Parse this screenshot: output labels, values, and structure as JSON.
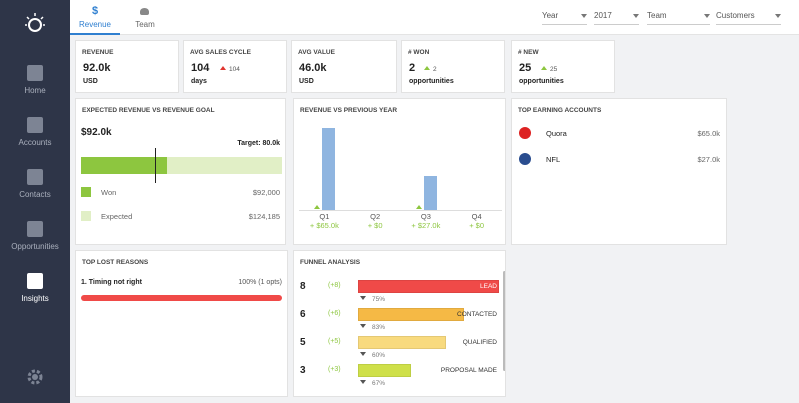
{
  "sidebar": {
    "nav": [
      "Home",
      "Accounts",
      "Contacts",
      "Opportunities",
      "Insights"
    ]
  },
  "tabs": [
    "Revenue",
    "Team"
  ],
  "filters": [
    "Year",
    "2017",
    "Team",
    "Customers"
  ],
  "kpis": [
    {
      "title": "REVENUE",
      "value": "92.0k",
      "sub": "USD"
    },
    {
      "title": "AVG SALES CYCLE",
      "value": "104",
      "change": "104",
      "sub": "days"
    },
    {
      "title": "AVG VALUE",
      "value": "46.0k",
      "sub": "USD"
    },
    {
      "title": "# WON",
      "value": "2",
      "change": "2",
      "sub": "opportunities"
    },
    {
      "title": "# NEW",
      "value": "25",
      "change": "25",
      "sub": "opportunities"
    }
  ],
  "expected_revenue": {
    "title": "EXPECTED REVENUE VS REVENUE GOAL",
    "total": "$92.0k",
    "target": {
      "value": 80000,
      "label": "Target: 80.0k"
    },
    "segments": [
      {
        "name": "Won",
        "value": 92000,
        "value_label": "$92,000",
        "color": "#8dc63f"
      },
      {
        "name": "Expected",
        "value": 124185,
        "value_label": "$124,185",
        "color": "#e1efc6"
      }
    ]
  },
  "revenue_vs_previous_year": {
    "type": "bar",
    "title": "REVENUE VS PREVIOUS YEAR",
    "categories": [
      "Q1",
      "Q2",
      "Q3",
      "Q4"
    ],
    "values": [
      65,
      0,
      27,
      0
    ],
    "value_labels": [
      "+ $65.0k",
      "+ $0",
      "+ $27.0k",
      "+ $0"
    ],
    "color": "#8fb5e0"
  },
  "top_earning_accounts": {
    "title": "TOP EARNING ACCOUNTS",
    "rows": [
      {
        "name": "Quora",
        "value": "$65.0k"
      },
      {
        "name": "NFL",
        "value": "$27.0k"
      }
    ]
  },
  "top_lost_reasons": {
    "title": "TOP LOST REASONS",
    "rows": [
      {
        "label": "1. Timing not right",
        "value": 100,
        "value_label": "100% (1 opts)",
        "color": "#f04a48"
      }
    ]
  },
  "funnel": {
    "title": "FUNNEL ANALYSIS",
    "stages": [
      {
        "count": 8,
        "change": "(+8)",
        "name": "LEAD",
        "color": "#f04a48"
      },
      {
        "count": 6,
        "change": "(+6)",
        "name": "CONTACTED",
        "color": "#f5b945"
      },
      {
        "count": 5,
        "change": "(+5)",
        "name": "QUALIFIED",
        "color": "#f8da7e"
      },
      {
        "count": 3,
        "change": "(+3)",
        "name": "PROPOSAL MADE",
        "color": "#cfe04a"
      }
    ],
    "conversions": [
      "75%",
      "83%",
      "60%",
      "67%"
    ]
  }
}
